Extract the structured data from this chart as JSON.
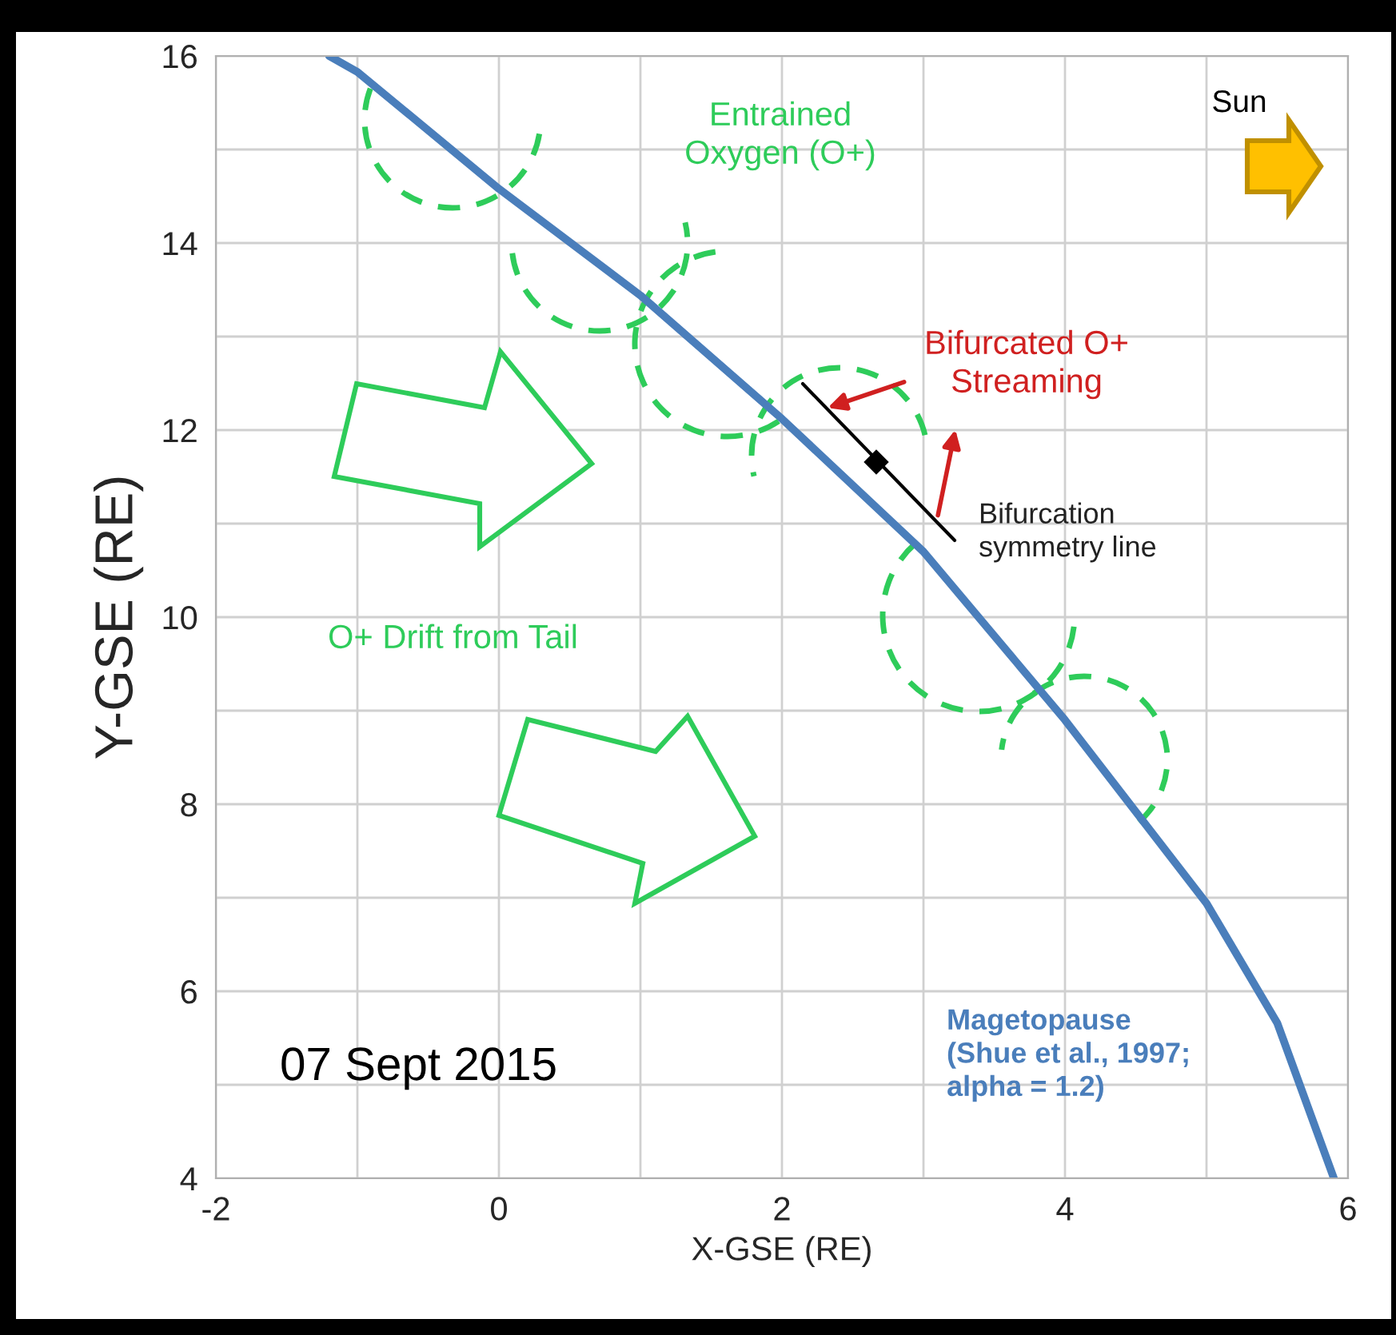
{
  "chart_data": {
    "type": "line",
    "xlabel": "X-GSE (RE)",
    "ylabel": "Y-GSE (RE)",
    "series": [
      {
        "color": "#4a7ebb",
        "x": [
          -1.2,
          -1.0,
          0,
          1,
          2,
          3,
          4,
          5,
          5.5,
          5.9
        ],
        "values": [
          16,
          15.83,
          14.58,
          13.44,
          12.12,
          10.7,
          8.9,
          6.94,
          5.66,
          4
        ]
      }
    ],
    "xlim": [
      -2,
      6
    ],
    "ylim": [
      4,
      16
    ],
    "xticks": [
      -2,
      {
        "value": -1,
        "label": null
      },
      0,
      {
        "value": 1,
        "label": null
      },
      2,
      {
        "value": 3,
        "label": null
      },
      4,
      {
        "value": 5,
        "label": null
      },
      6
    ],
    "yticks": [
      4,
      {
        "value": 5,
        "label": null
      },
      6,
      {
        "value": 7,
        "label": null
      },
      8,
      {
        "value": 9,
        "label": null
      },
      10,
      {
        "value": 11,
        "label": null
      },
      12,
      {
        "value": 13,
        "label": null
      },
      14,
      {
        "value": 15,
        "label": null
      },
      16
    ],
    "grid": true,
    "marker": "none",
    "line_style": "solid",
    "annotations": [
      "Entrained\nOxygen (O+)",
      "Sun",
      "Bifurcated O+\nStreaming",
      "Bifurcation\nsymmetry line",
      "O+ Drift from Tail",
      "07 Sept 2015",
      "Magetopause\n(Shue et al., 1997;\nalpha = 1.2)"
    ]
  }
}
